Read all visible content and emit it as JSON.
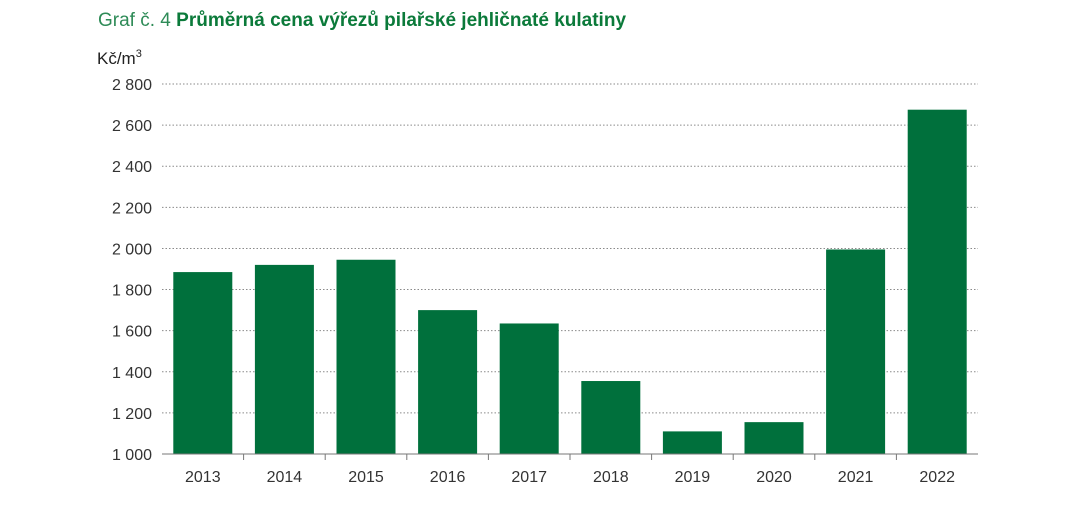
{
  "title": {
    "prefix": "Graf č. 4",
    "main": "Průměrná cena výřezů pilařské jehličnaté kulatiny"
  },
  "chart_data": {
    "type": "bar",
    "unit_label": "Kč/m",
    "unit_superscript": "3",
    "categories": [
      "2013",
      "2014",
      "2015",
      "2016",
      "2017",
      "2018",
      "2019",
      "2020",
      "2021",
      "2022"
    ],
    "values": [
      1885,
      1920,
      1945,
      1700,
      1635,
      1355,
      1110,
      1155,
      1995,
      2675
    ],
    "ylim": [
      1000,
      2800
    ],
    "yticks": [
      1000,
      1200,
      1400,
      1600,
      1800,
      2000,
      2200,
      2400,
      2600,
      2800
    ],
    "ytick_labels": [
      "1 000",
      "1 200",
      "1 400",
      "1 600",
      "1 800",
      "2 000",
      "2 200",
      "2 400",
      "2 600",
      "2 800"
    ],
    "grid": true,
    "bar_color": "#00703c"
  }
}
